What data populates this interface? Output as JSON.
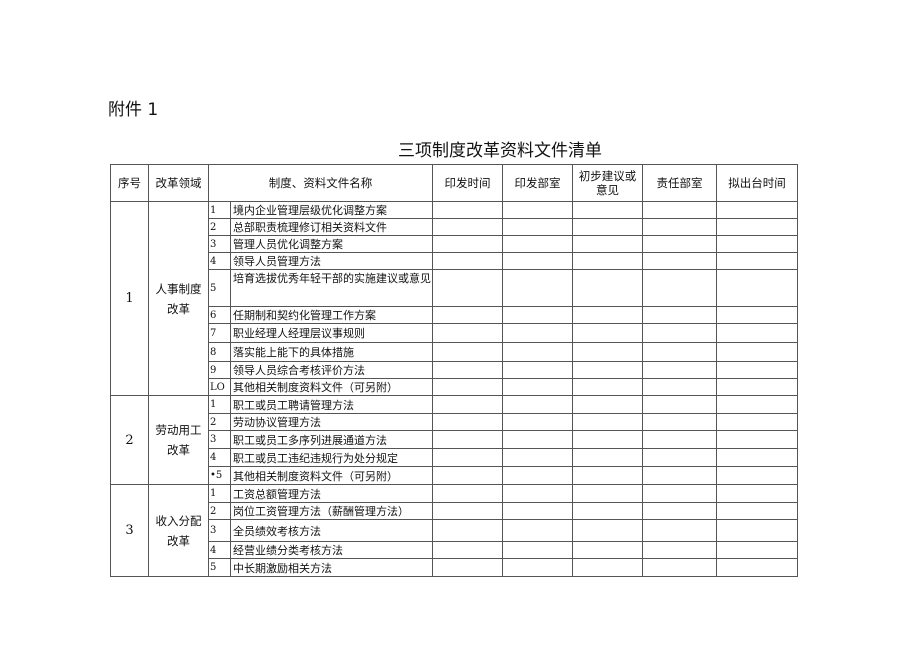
{
  "attachment": "附件 1",
  "title": "三项制度改革资料文件清单",
  "headers": [
    "序号",
    "改革领域",
    "制度、资料文件名称",
    "印发时间",
    "印发部室",
    "初步建议或意见",
    "责任部室",
    "拟出台时间"
  ],
  "groups": [
    {
      "no": "1",
      "area": "人事制度改革",
      "items": [
        {
          "n": "1",
          "name": "境内企业管理层级优化调整方案"
        },
        {
          "n": "2",
          "name": "总部职责梳理修订相关资料文件"
        },
        {
          "n": "3",
          "name": "管理人员优化调整方案"
        },
        {
          "n": "4",
          "name": "领导人员管理方法"
        },
        {
          "n": "5",
          "name": "培育选拔优秀年轻干部的实施建议或意见"
        },
        {
          "n": "6",
          "name": "任期制和契约化管理工作方案"
        },
        {
          "n": "7",
          "name": "职业经理人经理层议事规则"
        },
        {
          "n": "8",
          "name": "落实能上能下的具体措施"
        },
        {
          "n": "9",
          "name": "领导人员综合考核评价方法"
        },
        {
          "n": "LO",
          "name": "其他相关制度资料文件（可另附）"
        }
      ]
    },
    {
      "no": "2",
      "area": "劳动用工改革",
      "items": [
        {
          "n": "1",
          "name": "职工或员工聘请管理方法"
        },
        {
          "n": "2",
          "name": "劳动协议管理方法"
        },
        {
          "n": "3",
          "name": "职工或员工多序列进展通道方法"
        },
        {
          "n": "4",
          "name": "职工或员工违纪违规行为处分规定"
        },
        {
          "n": "•5",
          "name": "其他相关制度资料文件（可另附）"
        }
      ]
    },
    {
      "no": "3",
      "area": "收入分配改革",
      "items": [
        {
          "n": "1",
          "name": "工资总额管理方法"
        },
        {
          "n": "2",
          "name": "岗位工资管理方法（薪酬管理方法）"
        },
        {
          "n": "3",
          "name": "全员绩效考核方法"
        },
        {
          "n": "4",
          "name": "经营业绩分类考核方法"
        },
        {
          "n": "5",
          "name": "中长期激励相关方法"
        }
      ]
    }
  ]
}
